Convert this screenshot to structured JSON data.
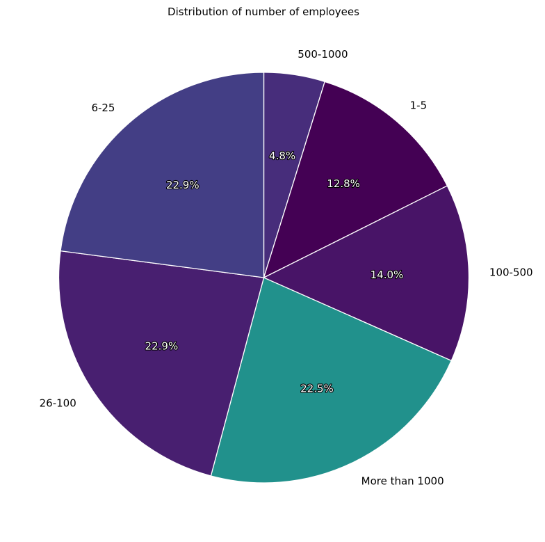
{
  "chart_data": {
    "type": "pie",
    "title": "Distribution of number of employees",
    "start_angle_deg": 90,
    "direction": "clockwise",
    "slices": [
      {
        "label": "500-1000",
        "value": 4.8,
        "pct_label": "4.8%",
        "color": "#472d7b"
      },
      {
        "label": "1-5",
        "value": 12.8,
        "pct_label": "12.8%",
        "color": "#440154"
      },
      {
        "label": "100-500",
        "value": 14.0,
        "pct_label": "14.0%",
        "color": "#481467"
      },
      {
        "label": "More than 1000",
        "value": 22.5,
        "pct_label": "22.5%",
        "color": "#21918c"
      },
      {
        "label": "26-100",
        "value": 22.9,
        "pct_label": "22.9%",
        "color": "#481f70"
      },
      {
        "label": "6-25",
        "value": 22.9,
        "pct_label": "22.9%",
        "color": "#433e85"
      }
    ]
  }
}
